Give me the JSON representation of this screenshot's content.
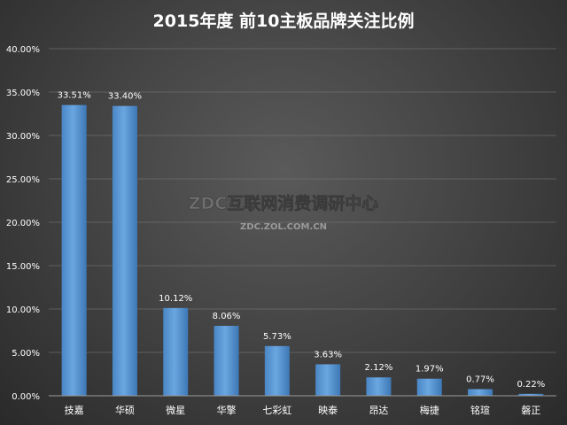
{
  "chart_data": {
    "type": "bar",
    "title": "2015年度 前10主板品牌关注比例",
    "categories": [
      "技嘉",
      "华硕",
      "微星",
      "华擎",
      "七彩虹",
      "映泰",
      "昂达",
      "梅捷",
      "铭瑄",
      "磐正"
    ],
    "values": [
      33.51,
      33.4,
      10.12,
      8.06,
      5.73,
      3.63,
      2.12,
      1.97,
      0.77,
      0.22
    ],
    "data_labels": [
      "33.51%",
      "33.40%",
      "10.12%",
      "8.06%",
      "5.73%",
      "3.63%",
      "2.12%",
      "1.97%",
      "0.77%",
      "0.22%"
    ],
    "ylim": [
      0,
      40
    ],
    "yticks": [
      0,
      5,
      10,
      15,
      20,
      25,
      30,
      35,
      40
    ],
    "ytick_labels": [
      "0.00%",
      "5.00%",
      "10.00%",
      "15.00%",
      "20.00%",
      "25.00%",
      "30.00%",
      "35.00%",
      "40.00%"
    ],
    "xlabel": "",
    "ylabel": "",
    "grid": true,
    "legend": "none",
    "bar_color": "#5b9bd5",
    "bar_color_dark": "#3f7fbf",
    "gridline_color": "#7a7a7a",
    "axis_color": "#9a9a9a"
  },
  "watermark": {
    "main": "ZDC互联网消费调研中心",
    "sub": "ZDC.ZOL.COM.CN"
  }
}
